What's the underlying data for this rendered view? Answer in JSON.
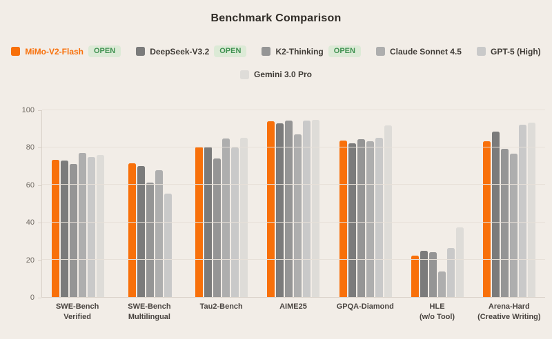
{
  "title": "Benchmark Comparison",
  "open_badge_label": "OPEN",
  "colors": {
    "background": "#f2ede7",
    "grid": "#e7e0d8",
    "axis": "#d9d1c8",
    "title_text": "#2f2b26",
    "category_text": "#494440",
    "tick_text": "#6e6861",
    "legend_text": "#3f3b36",
    "highlight_legend_text": "#f8700a",
    "badge_bg": "#dcead6",
    "badge_text": "#3f9150"
  },
  "chart_data": {
    "type": "bar",
    "title": "Benchmark Comparison",
    "xlabel": "",
    "ylabel": "",
    "ylim": [
      0,
      100
    ],
    "y_ticks": [
      0,
      20,
      40,
      60,
      80,
      100
    ],
    "grid": true,
    "legend_position": "top",
    "categories": [
      "SWE-Bench\nVerified",
      "SWE-Bench\nMultilingual",
      "Tau2-Bench",
      "AIME25",
      "GPQA-Diamond",
      "HLE\n(w/o Tool)",
      "Arena-Hard\n(Creative Writing)"
    ],
    "series": [
      {
        "name": "MiMo-V2-Flash",
        "color": "#f8700a",
        "open": true,
        "values": [
          73.4,
          71.7,
          80.5,
          94.1,
          83.7,
          22.1,
          83.3
        ]
      },
      {
        "name": "DeepSeek-V3.2",
        "color": "#7b7b7b",
        "open": true,
        "values": [
          73.0,
          70.2,
          80.3,
          93.0,
          82.2,
          24.9,
          88.5
        ]
      },
      {
        "name": "K2-Thinking",
        "color": "#959595",
        "open": true,
        "values": [
          71.3,
          61.1,
          74.1,
          94.5,
          84.5,
          23.9,
          79.2
        ]
      },
      {
        "name": "Claude Sonnet 4.5",
        "color": "#aeaeae",
        "open": false,
        "values": [
          77.2,
          68.0,
          84.7,
          87.0,
          83.4,
          13.7,
          76.6
        ]
      },
      {
        "name": "GPT-5 (High)",
        "color": "#c9c9c9",
        "open": false,
        "values": [
          74.9,
          55.3,
          80.1,
          94.6,
          85.4,
          26.3,
          92.2
        ]
      },
      {
        "name": "Gemini 3.0 Pro",
        "color": "#dedcd8",
        "open": false,
        "values": [
          76.2,
          null,
          85.4,
          95.0,
          91.9,
          37.4,
          93.3
        ]
      }
    ]
  }
}
